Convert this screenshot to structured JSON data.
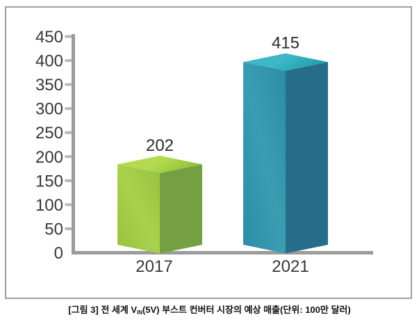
{
  "chart_data": {
    "type": "bar",
    "title": "",
    "xlabel": "",
    "ylabel": "",
    "categories": [
      "2017",
      "2021"
    ],
    "values": [
      202,
      415
    ],
    "value_labels": [
      "202",
      "415"
    ],
    "ylim": [
      0,
      450
    ],
    "ytick_step": 50,
    "ytick_labels": [
      "0",
      "50",
      "100",
      "150",
      "200",
      "250",
      "300",
      "350",
      "400",
      "450"
    ],
    "grid": false,
    "legend": false,
    "bar_style": "3d-prism",
    "series_colors": [
      {
        "name": "2017-green",
        "top_light": "#b4da52",
        "top_dark": "#92c437",
        "side_light": "#a9d14c",
        "side_base": "#97c23e",
        "side_dark": "#75a041"
      },
      {
        "name": "2021-teal",
        "top_light": "#3eb6c3",
        "top_dark": "#1d9fb0",
        "side_light": "#3a9db2",
        "side_base": "#2b8da5",
        "side_dark": "#266d89"
      }
    ],
    "axis_color": "#9b9b9b",
    "tick_color": "#b7b7b7",
    "text_color": "#373737",
    "value_label_color": "#2b2b2b"
  },
  "caption": {
    "prefix": "[그림 3] 전 세계 V",
    "subscript": "IN",
    "suffix": "(5V) 부스트 컨버터 시장의 예상 매출(단위: 100만 달러)"
  }
}
